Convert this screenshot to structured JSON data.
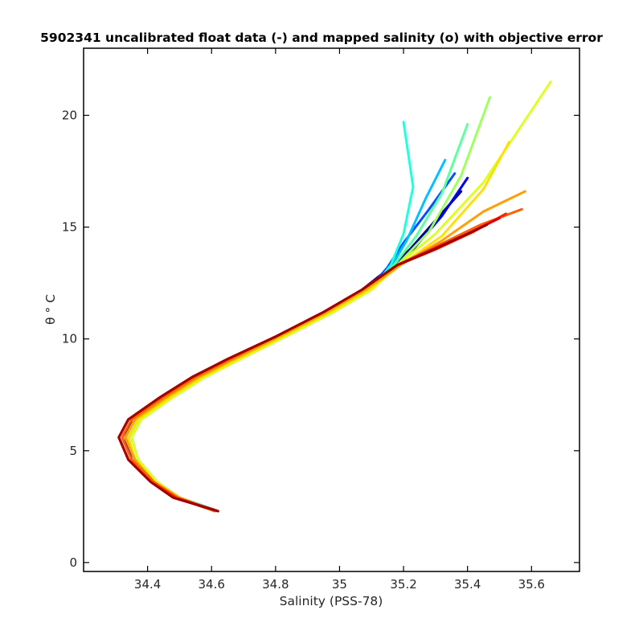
{
  "chart_data": {
    "type": "line",
    "title": "5902341 uncalibrated float data (-) and mapped salinity (o) with objective error",
    "xlabel": "Salinity (PSS-78)",
    "ylabel": "θ ° C",
    "xlim": [
      34.2,
      35.75
    ],
    "ylim": [
      -0.4,
      23
    ],
    "xticks": [
      34.4,
      34.6,
      34.8,
      35,
      35.2,
      35.4,
      35.6
    ],
    "xtick_labels": [
      "34.4",
      "34.6",
      "34.8",
      "35",
      "35.2",
      "35.4",
      "35.6"
    ],
    "yticks": [
      0,
      5,
      10,
      15,
      20
    ],
    "ytick_labels": [
      "0",
      "5",
      "10",
      "15",
      "20"
    ],
    "grid": false,
    "colormap": "jet",
    "series": [
      {
        "color": "#00007f",
        "s": [
          34.62,
          34.5,
          34.43,
          34.36,
          34.33,
          34.35,
          34.45,
          34.55,
          34.66,
          34.8,
          34.95,
          35.07,
          35.15,
          35.22,
          35.3,
          35.38
        ],
        "t": [
          2.3,
          2.9,
          3.6,
          4.6,
          5.6,
          6.4,
          7.4,
          8.3,
          9.1,
          10.1,
          11.2,
          12.2,
          13.1,
          14.0,
          15.3,
          16.6
        ]
      },
      {
        "color": "#0000e5",
        "s": [
          34.61,
          34.49,
          34.42,
          34.35,
          34.33,
          34.36,
          34.46,
          34.56,
          34.67,
          34.81,
          34.96,
          35.08,
          35.16,
          35.23,
          35.32,
          35.4
        ],
        "t": [
          2.3,
          2.9,
          3.6,
          4.6,
          5.6,
          6.4,
          7.4,
          8.3,
          9.1,
          10.1,
          11.2,
          12.2,
          13.1,
          14.0,
          15.5,
          17.2
        ]
      },
      {
        "color": "#0050ff",
        "s": [
          34.6,
          34.5,
          34.43,
          34.36,
          34.34,
          34.37,
          34.47,
          34.57,
          34.68,
          34.82,
          34.97,
          35.09,
          35.15,
          35.2,
          35.28,
          35.36
        ],
        "t": [
          2.4,
          2.9,
          3.6,
          4.6,
          5.6,
          6.4,
          7.4,
          8.3,
          9.1,
          10.1,
          11.2,
          12.2,
          13.2,
          14.3,
          15.8,
          17.4
        ]
      },
      {
        "color": "#00bfff",
        "s": [
          34.6,
          34.5,
          34.43,
          34.37,
          34.35,
          34.38,
          34.48,
          34.58,
          34.69,
          34.83,
          34.98,
          35.1,
          35.16,
          35.21,
          35.27,
          35.33
        ],
        "t": [
          2.4,
          2.9,
          3.6,
          4.6,
          5.6,
          6.4,
          7.4,
          8.3,
          9.1,
          10.1,
          11.2,
          12.2,
          13.2,
          14.4,
          16.3,
          18.0
        ]
      },
      {
        "color": "#1fffdf",
        "s": [
          34.6,
          34.5,
          34.43,
          34.37,
          34.35,
          34.38,
          34.48,
          34.58,
          34.69,
          34.83,
          34.98,
          35.1,
          35.16,
          35.2,
          35.23,
          35.2
        ],
        "t": [
          2.4,
          2.9,
          3.6,
          4.6,
          5.6,
          6.4,
          7.4,
          8.3,
          9.1,
          10.1,
          11.2,
          12.2,
          13.3,
          14.7,
          16.8,
          19.7
        ]
      },
      {
        "color": "#5fff9f",
        "s": [
          34.6,
          34.5,
          34.43,
          34.37,
          34.35,
          34.38,
          34.48,
          34.58,
          34.69,
          34.83,
          34.98,
          35.1,
          35.17,
          35.24,
          35.32,
          35.4
        ],
        "t": [
          2.4,
          2.9,
          3.6,
          4.6,
          5.6,
          6.4,
          7.4,
          8.3,
          9.1,
          10.1,
          11.2,
          12.2,
          13.3,
          14.6,
          16.5,
          19.6
        ]
      },
      {
        "color": "#9fff5f",
        "s": [
          34.61,
          34.5,
          34.43,
          34.37,
          34.35,
          34.38,
          34.48,
          34.58,
          34.69,
          34.83,
          34.98,
          35.1,
          35.18,
          35.28,
          35.38,
          35.47
        ],
        "t": [
          2.3,
          2.9,
          3.6,
          4.6,
          5.6,
          6.4,
          7.4,
          8.3,
          9.1,
          10.1,
          11.2,
          12.2,
          13.3,
          14.8,
          17.3,
          20.8
        ]
      },
      {
        "color": "#dfff1f",
        "s": [
          34.61,
          34.5,
          34.43,
          34.37,
          34.35,
          34.38,
          34.48,
          34.58,
          34.69,
          34.83,
          34.98,
          35.1,
          35.18,
          35.3,
          35.45,
          35.66
        ],
        "t": [
          2.3,
          2.9,
          3.6,
          4.6,
          5.6,
          6.4,
          7.4,
          8.3,
          9.1,
          10.1,
          11.2,
          12.2,
          13.3,
          14.7,
          17.0,
          21.5
        ]
      },
      {
        "color": "#ffdf00",
        "s": [
          34.61,
          34.5,
          34.42,
          34.36,
          34.34,
          34.37,
          34.47,
          34.57,
          34.68,
          34.82,
          34.97,
          35.09,
          35.19,
          35.32,
          35.45,
          35.53
        ],
        "t": [
          2.3,
          2.9,
          3.6,
          4.6,
          5.6,
          6.4,
          7.4,
          8.3,
          9.1,
          10.1,
          11.2,
          12.2,
          13.3,
          14.6,
          16.7,
          18.8
        ]
      },
      {
        "color": "#ff9f00",
        "s": [
          34.61,
          34.5,
          34.42,
          34.36,
          34.33,
          34.36,
          34.46,
          34.56,
          34.67,
          34.81,
          34.96,
          35.08,
          35.19,
          35.32,
          35.45,
          35.58
        ],
        "t": [
          2.3,
          2.9,
          3.6,
          4.6,
          5.6,
          6.4,
          7.4,
          8.3,
          9.1,
          10.1,
          11.2,
          12.2,
          13.3,
          14.4,
          15.7,
          16.6
        ]
      },
      {
        "color": "#ff5f00",
        "s": [
          34.61,
          34.49,
          34.42,
          34.35,
          34.32,
          34.35,
          34.45,
          34.55,
          34.66,
          34.8,
          34.95,
          35.07,
          35.18,
          35.31,
          35.44,
          35.57
        ],
        "t": [
          2.3,
          2.9,
          3.6,
          4.6,
          5.6,
          6.4,
          7.4,
          8.3,
          9.1,
          10.1,
          11.2,
          12.2,
          13.3,
          14.2,
          15.1,
          15.8
        ]
      },
      {
        "color": "#ff1f00",
        "s": [
          34.62,
          34.49,
          34.41,
          34.34,
          34.31,
          34.34,
          34.44,
          34.54,
          34.65,
          34.8,
          34.95,
          35.07,
          35.18,
          35.3,
          35.42,
          35.52
        ],
        "t": [
          2.3,
          2.9,
          3.6,
          4.6,
          5.6,
          6.4,
          7.4,
          8.3,
          9.1,
          10.1,
          11.2,
          12.2,
          13.3,
          14.0,
          14.8,
          15.6
        ]
      },
      {
        "color": "#df0000",
        "s": [
          34.62,
          34.48,
          34.41,
          34.34,
          34.31,
          34.34,
          34.44,
          34.54,
          34.65,
          34.8,
          34.95,
          35.07,
          35.18,
          35.29,
          35.4,
          35.5
        ],
        "t": [
          2.3,
          2.9,
          3.6,
          4.6,
          5.6,
          6.4,
          7.4,
          8.3,
          9.1,
          10.1,
          11.2,
          12.2,
          13.3,
          14.0,
          14.7,
          15.4
        ]
      },
      {
        "color": "#9f0000",
        "s": [
          34.62,
          34.48,
          34.41,
          34.34,
          34.31,
          34.34,
          34.44,
          34.54,
          34.65,
          34.8,
          34.95,
          35.07,
          35.18,
          35.28,
          35.37,
          35.46
        ],
        "t": [
          2.3,
          2.9,
          3.6,
          4.6,
          5.6,
          6.4,
          7.4,
          8.3,
          9.1,
          10.1,
          11.2,
          12.2,
          13.3,
          13.9,
          14.5,
          15.1
        ]
      }
    ]
  }
}
